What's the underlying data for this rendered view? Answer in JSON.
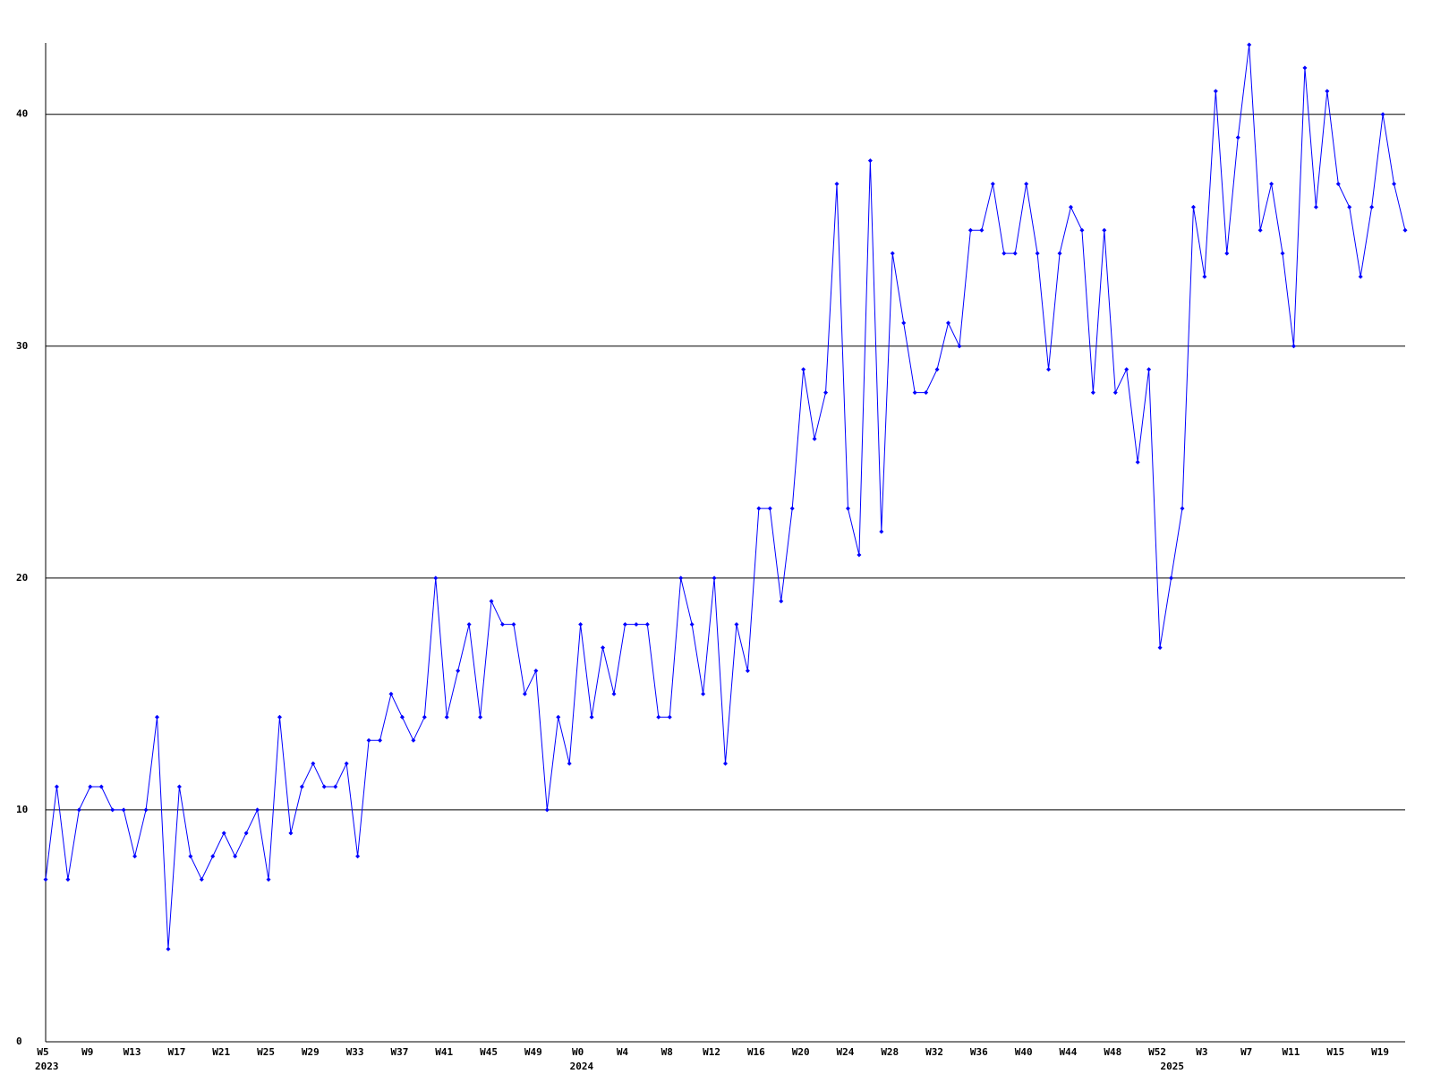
{
  "chart_data": {
    "type": "line",
    "color": "#0000ff",
    "grid": true,
    "ylim": [
      0,
      43
    ],
    "yticks": [
      0,
      10,
      20,
      30,
      40
    ],
    "categories": [
      "W5",
      null,
      null,
      null,
      "W9",
      null,
      null,
      null,
      "W13",
      null,
      null,
      null,
      "W17",
      null,
      null,
      null,
      "W21",
      null,
      null,
      null,
      "W25",
      null,
      null,
      null,
      "W29",
      null,
      null,
      null,
      "W33",
      null,
      null,
      null,
      "W37",
      null,
      null,
      null,
      "W41",
      null,
      null,
      null,
      "W45",
      null,
      null,
      null,
      "W49",
      null,
      null,
      null,
      "W0",
      null,
      null,
      null,
      "W4",
      null,
      null,
      null,
      "W8",
      null,
      null,
      null,
      "W12",
      null,
      null,
      null,
      "W16",
      null,
      null,
      null,
      "W20",
      null,
      null,
      null,
      "W24",
      null,
      null,
      null,
      "W28",
      null,
      null,
      null,
      "W32",
      null,
      null,
      null,
      "W36",
      null,
      null,
      null,
      "W40",
      null,
      null,
      null,
      "W44",
      null,
      null,
      null,
      "W48",
      null,
      null,
      null,
      "W52",
      null,
      null,
      null,
      "W3",
      null,
      null,
      null,
      "W7",
      null,
      null,
      null,
      "W11",
      null,
      null,
      null,
      "W15",
      null,
      null,
      null,
      "W19",
      null,
      null
    ],
    "years": [
      "2023",
      null,
      null,
      null,
      null,
      null,
      null,
      null,
      null,
      null,
      null,
      null,
      null,
      null,
      null,
      null,
      null,
      null,
      null,
      null,
      null,
      null,
      null,
      null,
      null,
      null,
      null,
      null,
      null,
      null,
      null,
      null,
      null,
      null,
      null,
      null,
      null,
      null,
      null,
      null,
      null,
      null,
      null,
      null,
      null,
      null,
      null,
      null,
      "2024",
      null,
      null,
      null,
      null,
      null,
      null,
      null,
      null,
      null,
      null,
      null,
      null,
      null,
      null,
      null,
      null,
      null,
      null,
      null,
      null,
      null,
      null,
      null,
      null,
      null,
      null,
      null,
      null,
      null,
      null,
      null,
      null,
      null,
      null,
      null,
      null,
      null,
      null,
      null,
      null,
      null,
      null,
      null,
      null,
      null,
      null,
      null,
      null,
      null,
      null,
      null,
      null,
      "2025",
      null,
      null,
      null,
      null,
      null,
      null,
      null,
      null,
      null,
      null,
      null,
      null,
      null,
      null,
      null,
      null,
      null,
      null,
      null,
      null,
      null
    ],
    "values": [
      7,
      11,
      7,
      10,
      11,
      11,
      10,
      10,
      8,
      10,
      14,
      4,
      11,
      8,
      7,
      8,
      9,
      8,
      9,
      10,
      7,
      14,
      9,
      11,
      12,
      11,
      11,
      12,
      8,
      13,
      13,
      15,
      14,
      13,
      14,
      20,
      14,
      16,
      18,
      14,
      19,
      18,
      18,
      15,
      16,
      10,
      14,
      12,
      18,
      14,
      17,
      15,
      18,
      18,
      18,
      14,
      14,
      20,
      18,
      15,
      20,
      12,
      18,
      16,
      23,
      23,
      19,
      23,
      29,
      26,
      28,
      37,
      23,
      21,
      38,
      22,
      34,
      31,
      28,
      28,
      29,
      31,
      30,
      35,
      35,
      37,
      34,
      34,
      37,
      34,
      29,
      34,
      36,
      35,
      28,
      35,
      28,
      29,
      25,
      29,
      17,
      20,
      23,
      36,
      33,
      41,
      34,
      39,
      43,
      35,
      37,
      34,
      30,
      42,
      36,
      41,
      37,
      36,
      33,
      36,
      40,
      37,
      35
    ]
  }
}
